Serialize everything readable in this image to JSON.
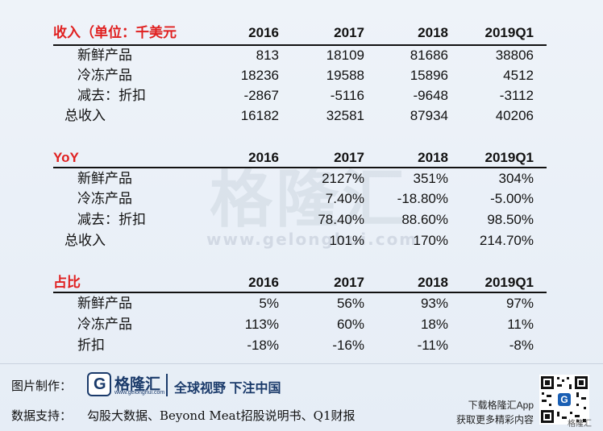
{
  "sections": [
    {
      "title": "收入（单位：千美元",
      "headers": [
        "2016",
        "2017",
        "2018",
        "2019Q1"
      ],
      "rows": [
        {
          "label": "新鲜产品",
          "values": [
            "813",
            "18109",
            "81686",
            "38806"
          ]
        },
        {
          "label": "冷冻产品",
          "values": [
            "18236",
            "19588",
            "15896",
            "4512"
          ]
        },
        {
          "label": "减去：折扣",
          "values": [
            "-2867",
            "-5116",
            "-9648",
            "-3112"
          ]
        },
        {
          "label": "总收入",
          "values": [
            "16182",
            "32581",
            "87934",
            "40206"
          ]
        }
      ]
    },
    {
      "title": "YoY",
      "headers": [
        "2016",
        "2017",
        "2018",
        "2019Q1"
      ],
      "rows": [
        {
          "label": "新鲜产品",
          "values": [
            "",
            "2127%",
            "351%",
            "304%"
          ]
        },
        {
          "label": "冷冻产品",
          "values": [
            "",
            "7.40%",
            "-18.80%",
            "-5.00%"
          ]
        },
        {
          "label": "减去：折扣",
          "values": [
            "",
            "78.40%",
            "88.60%",
            "98.50%"
          ]
        },
        {
          "label": "总收入",
          "values": [
            "",
            "101%",
            "170%",
            "214.70%"
          ]
        }
      ]
    },
    {
      "title": "占比",
      "headers": [
        "2016",
        "2017",
        "2018",
        "2019Q1"
      ],
      "rows": [
        {
          "label": "新鲜产品",
          "values": [
            "5%",
            "56%",
            "93%",
            "97%"
          ]
        },
        {
          "label": "冷冻产品",
          "values": [
            "113%",
            "60%",
            "18%",
            "11%"
          ]
        },
        {
          "label": "折扣",
          "values": [
            "-18%",
            "-16%",
            "-11%",
            "-8%"
          ]
        }
      ]
    }
  ],
  "watermark": {
    "brand": "格隆汇",
    "url": "www.gelonghui.com"
  },
  "footer": {
    "made_by_label": "图片制作：",
    "logo_letter": "G",
    "logo_name": "格隆汇",
    "logo_url": "www.gelonghui.com",
    "slogan": "全球视野 下注中国",
    "data_label": "数据支持：",
    "data_sources": "勾股大数据、Beyond Meat招股说明书、Q1财报",
    "qr_caption_line1": "下载格隆汇App",
    "qr_caption_line2": "获取更多精彩内容",
    "qr_brand": "格隆汇"
  }
}
